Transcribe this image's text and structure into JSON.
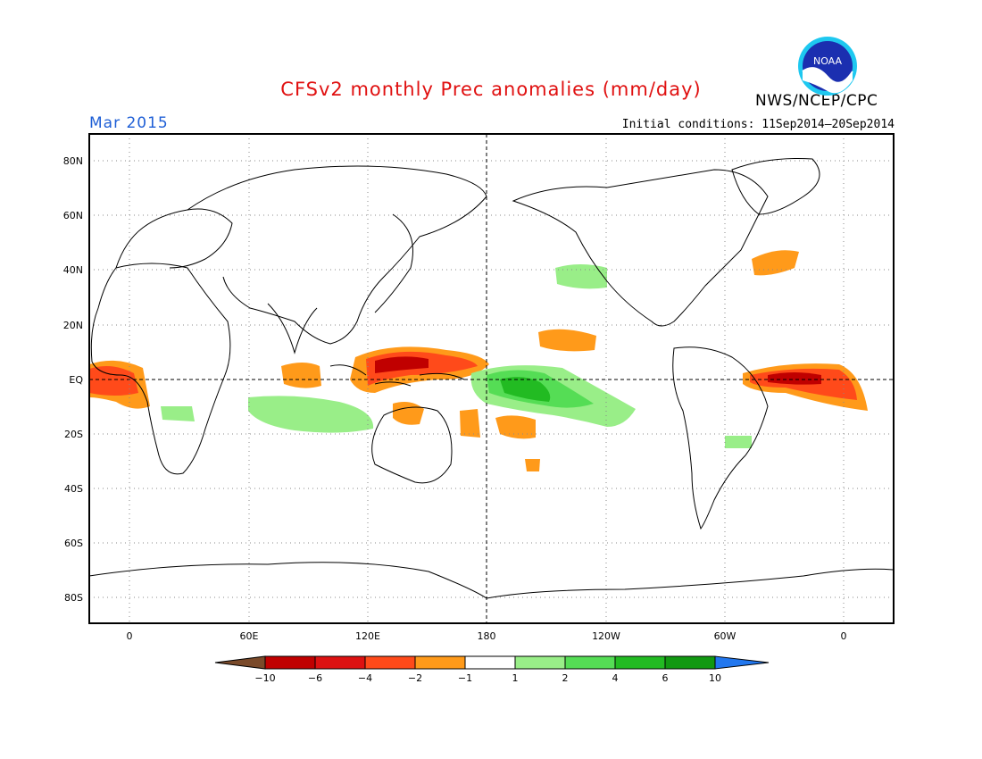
{
  "title": "CFSv2 monthly Prec anomalies (mm/day)",
  "agency": "NWS/NCEP/CPC",
  "logo_text": "NOAA",
  "month": "Mar 2015",
  "initial_conditions": "Initial conditions: 11Sep2014–20Sep2014",
  "lat_labels": [
    "80N",
    "60N",
    "40N",
    "20N",
    "EQ",
    "20S",
    "40S",
    "60S",
    "80S"
  ],
  "lon_labels": [
    "0",
    "60E",
    "120E",
    "180",
    "120W",
    "60W",
    "0"
  ],
  "colorbar": {
    "labels": [
      "−10",
      "−6",
      "−4",
      "−2",
      "−1",
      "1",
      "2",
      "4",
      "6",
      "10"
    ],
    "colors": [
      "#7a4a2a",
      "#c00000",
      "#dd1111",
      "#ff4a1a",
      "#ff9a1a",
      "#ffffff",
      "#99ee88",
      "#55dd55",
      "#22bb22",
      "#119911",
      "#2277ee"
    ]
  }
}
